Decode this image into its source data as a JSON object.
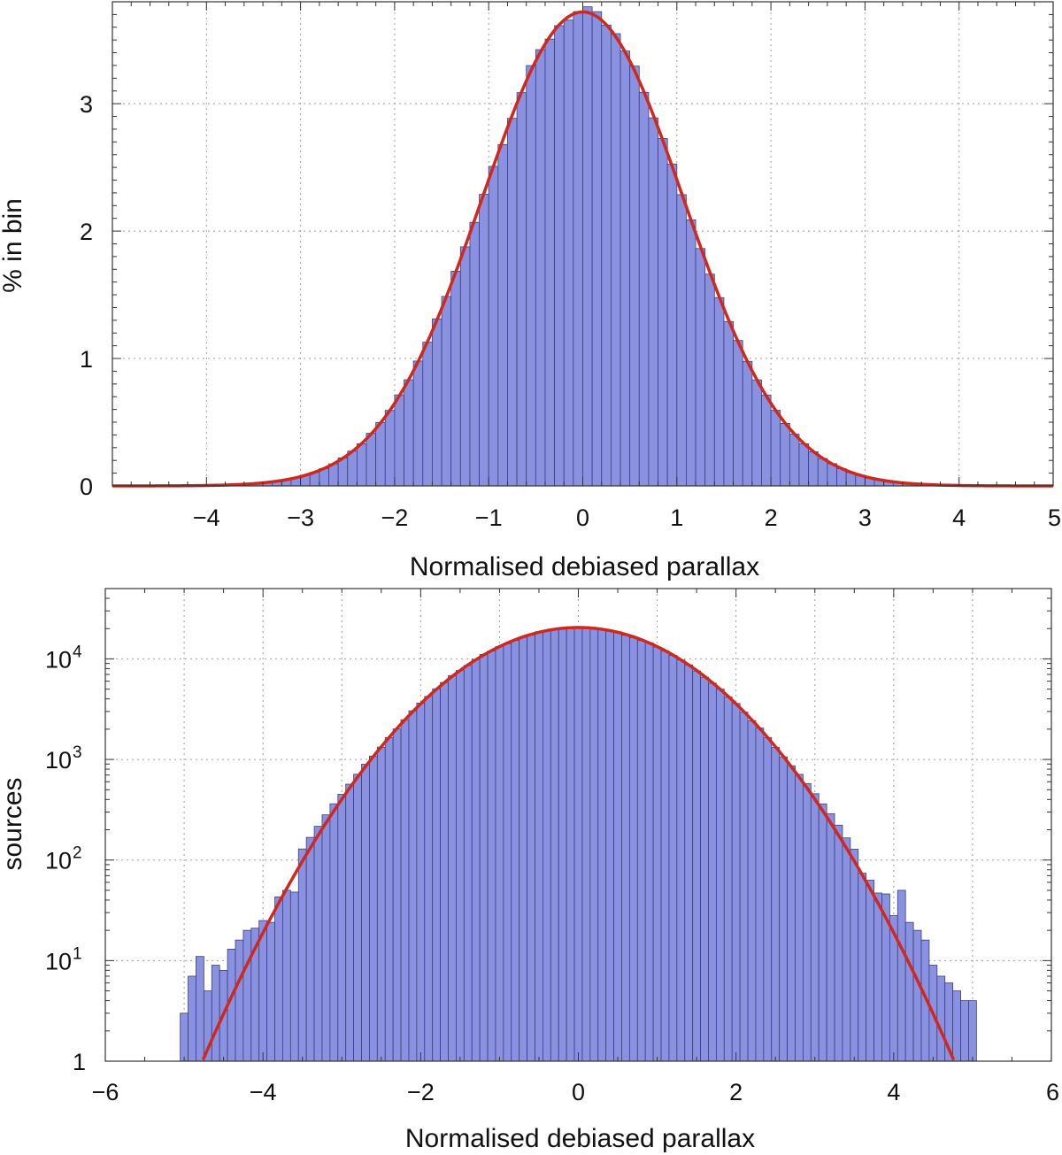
{
  "colors": {
    "bar_fill": "#8b91e1",
    "bar_stroke": "#3a3f7a",
    "fit_curve": "#d0281c",
    "grid": "#a0a0a0",
    "axis": "#333333"
  },
  "chart_data": [
    {
      "type": "bar",
      "title": "",
      "xlabel": "Normalised debiased parallax",
      "ylabel": "% in bin",
      "xlim": [
        -5,
        5
      ],
      "ylim": [
        0,
        3.8
      ],
      "xticks": [
        -4,
        -3,
        -2,
        -1,
        0,
        1,
        2,
        3,
        4,
        5
      ],
      "xtick_labels": [
        "−4",
        "−3",
        "−2",
        "−1",
        "0",
        "1",
        "2",
        "3",
        "4",
        "5"
      ],
      "yticks": [
        0,
        1,
        2,
        3
      ],
      "ytick_labels": [
        "0",
        "1",
        "2",
        "3"
      ],
      "grid": true,
      "bin_width": 0.1,
      "bins_from": -3.5,
      "bins_to": 3.5,
      "fit": {
        "type": "gaussian",
        "mean": 0.0,
        "sigma": 1.07,
        "bin_width": 0.1,
        "peak": 3.72
      },
      "series": [
        {
          "name": "histogram",
          "values": "gaussian fit values with slight scatter"
        },
        {
          "name": "gaussian fit",
          "values": "curve"
        }
      ]
    },
    {
      "type": "bar",
      "title": "",
      "xlabel": "Normalised debiased parallax",
      "ylabel": "sources",
      "yscale": "log",
      "xlim": [
        -6,
        6
      ],
      "ylim": [
        1,
        50000
      ],
      "xticks": [
        -6,
        -4,
        -2,
        0,
        2,
        4,
        6
      ],
      "xtick_labels": [
        "−6",
        "−4",
        "−2",
        "0",
        "2",
        "4",
        "6"
      ],
      "yticks": [
        1,
        10,
        100,
        1000,
        10000
      ],
      "ytick_labels": [
        {
          "base": "1",
          "exp": ""
        },
        {
          "base": "10",
          "exp": "1"
        },
        {
          "base": "10",
          "exp": "2"
        },
        {
          "base": "10",
          "exp": "3"
        },
        {
          "base": "10",
          "exp": "4"
        }
      ],
      "grid": true,
      "bin_width": 0.1,
      "bins_from": -5.05,
      "bins_to": 5.05,
      "fit": {
        "type": "gaussian",
        "mean": 0.0,
        "sigma": 1.07,
        "peak": 20500
      },
      "tail_counts": {
        "left": [
          3,
          7,
          11,
          5,
          9,
          8,
          13,
          16,
          20,
          21,
          25,
          24,
          43,
          50,
          48
        ],
        "right": [
          74,
          63,
          47,
          46,
          28,
          50,
          24,
          20,
          16,
          9,
          7,
          6,
          5,
          4,
          4
        ]
      }
    }
  ]
}
